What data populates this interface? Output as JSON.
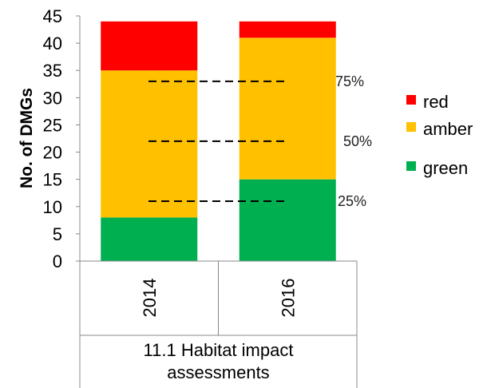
{
  "chart_data": {
    "type": "bar",
    "stacked": true,
    "categories": [
      "2014",
      "2016"
    ],
    "group_label_lines": [
      "11.1 Habitat impact",
      "assessments"
    ],
    "ylabel": "No. of DMGs",
    "xlabel": "",
    "ylim": [
      0,
      45
    ],
    "yticks": [
      0,
      5,
      10,
      15,
      20,
      25,
      30,
      35,
      40,
      45
    ],
    "series": [
      {
        "name": "green",
        "color": "#00b050",
        "values": [
          8,
          15
        ]
      },
      {
        "name": "amber",
        "color": "#ffc000",
        "values": [
          27,
          26
        ]
      },
      {
        "name": "red",
        "color": "#ff0000",
        "values": [
          9,
          3
        ]
      }
    ],
    "legend_order": [
      "red",
      "amber",
      "green"
    ],
    "legend_position": "right",
    "reference_lines": [
      {
        "label": "75%",
        "value": 33
      },
      {
        "label": "50%",
        "value": 22
      },
      {
        "label": "25%",
        "value": 11
      }
    ],
    "grid": false
  }
}
